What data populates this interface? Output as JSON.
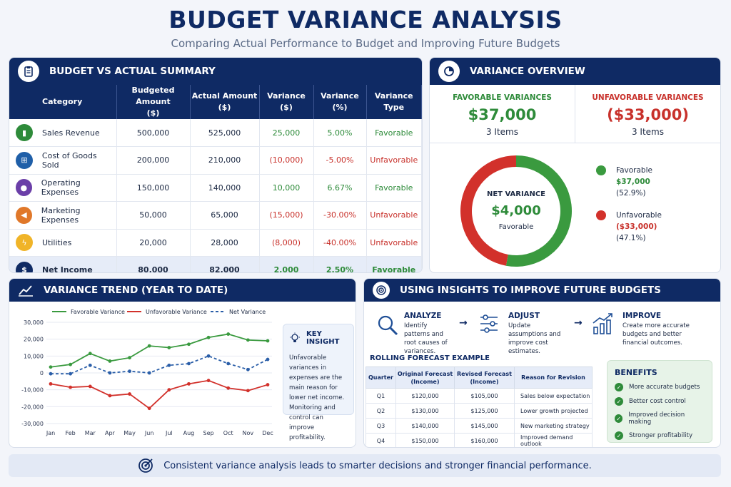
{
  "header": {
    "title": "BUDGET VARIANCE ANALYSIS",
    "subtitle": "Comparing Actual Performance to Budget and Improving Future Budgets"
  },
  "summary": {
    "title": "BUDGET VS ACTUAL SUMMARY",
    "columns": [
      "Category",
      "Budgeted Amount",
      "($)",
      "Actual Amount",
      "($)",
      "Variance",
      "($)",
      "Variance",
      "(%)",
      "Variance",
      "Type"
    ],
    "rows": [
      {
        "category": "Sales Revenue",
        "budget": "500,000",
        "actual": "525,000",
        "variance": "25,000",
        "pct": "5.00%",
        "type": "Favorable",
        "icon": "chart-icon",
        "color": "#2e8b3a"
      },
      {
        "category": "Cost of Goods Sold",
        "budget": "200,000",
        "actual": "210,000",
        "variance": "(10,000)",
        "pct": "-5.00%",
        "type": "Unfavorable",
        "icon": "cart-icon",
        "color": "#1f5fa8"
      },
      {
        "category": "Operating Expenses",
        "budget": "150,000",
        "actual": "140,000",
        "variance": "10,000",
        "pct": "6.67%",
        "type": "Favorable",
        "icon": "people-icon",
        "color": "#6b3fa8"
      },
      {
        "category": "Marketing Expenses",
        "budget": "50,000",
        "actual": "65,000",
        "variance": "(15,000)",
        "pct": "-30.00%",
        "type": "Unfavorable",
        "icon": "megaphone-icon",
        "color": "#e0782a"
      },
      {
        "category": "Utilities",
        "budget": "20,000",
        "actual": "28,000",
        "variance": "(8,000)",
        "pct": "-40.00%",
        "type": "Unfavorable",
        "icon": "lightning-icon",
        "color": "#f0b428"
      },
      {
        "category": "Net Income",
        "budget": "80,000",
        "actual": "82,000",
        "variance": "2,000",
        "pct": "2.50%",
        "type": "Favorable",
        "icon": "money-bag-icon",
        "color": "#0f2a64"
      }
    ]
  },
  "overview": {
    "title": "VARIANCE OVERVIEW",
    "favorable_label": "FAVORABLE VARIANCES",
    "favorable_amount": "$37,000",
    "favorable_items": "3 Items",
    "unfavorable_label": "UNFAVORABLE VARIANCES",
    "unfavorable_amount": "($33,000)",
    "unfavorable_items": "3 Items",
    "donut_label": "NET VARIANCE",
    "donut_amount": "$4,000",
    "donut_type": "Favorable",
    "legend": [
      {
        "name": "Favorable",
        "amount": "$37,000",
        "pct": "(52.9%)",
        "share": 52.9,
        "color": "#3a9a3f"
      },
      {
        "name": "Unfavorable",
        "amount": "($33,000)",
        "pct": "(47.1%)",
        "share": 47.1,
        "color": "#d2312b"
      }
    ]
  },
  "trend": {
    "title": "VARIANCE TREND (YEAR TO DATE)",
    "insight_title": "KEY INSIGHT",
    "insight_text": "Unfavorable variances in expenses are the main reason for lower net income. Monitoring and control can improve profitability."
  },
  "chart_data": {
    "type": "line",
    "categories": [
      "Jan",
      "Feb",
      "Mar",
      "Apr",
      "May",
      "Jun",
      "Jul",
      "Aug",
      "Sep",
      "Oct",
      "Nov",
      "Dec"
    ],
    "y_ticks": [
      "30,000",
      "20,000",
      "10,000",
      "0",
      "-10,000",
      "-20,000",
      "-30,000"
    ],
    "ylim": [
      -30000,
      30000
    ],
    "series": [
      {
        "name": "Favorable Variance",
        "color": "#3a9a3f",
        "dash": false,
        "values": [
          3500,
          5000,
          11500,
          7000,
          9000,
          16000,
          15000,
          17000,
          21000,
          23000,
          19500,
          19000
        ]
      },
      {
        "name": "Unfavorable Variance",
        "color": "#d2312b",
        "dash": false,
        "values": [
          -6500,
          -8500,
          -8000,
          -13500,
          -12500,
          -21000,
          -10000,
          -6500,
          -4500,
          -9000,
          -10500,
          -7000
        ]
      },
      {
        "name": "Net Variance",
        "color": "#2a5ea8",
        "dash": true,
        "values": [
          -500,
          -500,
          4500,
          0,
          1000,
          0,
          4500,
          5500,
          10000,
          5500,
          2000,
          8000
        ]
      }
    ]
  },
  "insights": {
    "title": "USING INSIGHTS TO IMPROVE FUTURE BUDGETS",
    "steps": [
      {
        "title": "ANALYZE",
        "text": "Identify patterns and root causes of variances.",
        "icon": "magnifier-icon"
      },
      {
        "title": "ADJUST",
        "text": "Update assumptions and improve cost estimates.",
        "icon": "sliders-icon"
      },
      {
        "title": "IMPROVE",
        "text": "Create more accurate budgets and better financial outcomes.",
        "icon": "growth-chart-icon"
      }
    ],
    "forecast_title": "ROLLING FORECAST EXAMPLE",
    "forecast_headers": [
      "Quarter",
      "Original Forecast (Income)",
      "Revised Forecast (Income)",
      "Reason for Revision"
    ],
    "forecast_rows": [
      [
        "Q1",
        "$120,000",
        "$105,000",
        "Sales below expectation"
      ],
      [
        "Q2",
        "$130,000",
        "$125,000",
        "Lower growth projected"
      ],
      [
        "Q3",
        "$140,000",
        "$145,000",
        "New marketing strategy"
      ],
      [
        "Q4",
        "$150,000",
        "$160,000",
        "Improved demand outlook"
      ]
    ],
    "benefits_title": "BENEFITS",
    "benefits": [
      "More accurate budgets",
      "Better cost control",
      "Improved decision making",
      "Stronger profitability"
    ]
  },
  "footer": {
    "text": "Consistent variance analysis leads to smarter decisions and stronger financial performance."
  }
}
